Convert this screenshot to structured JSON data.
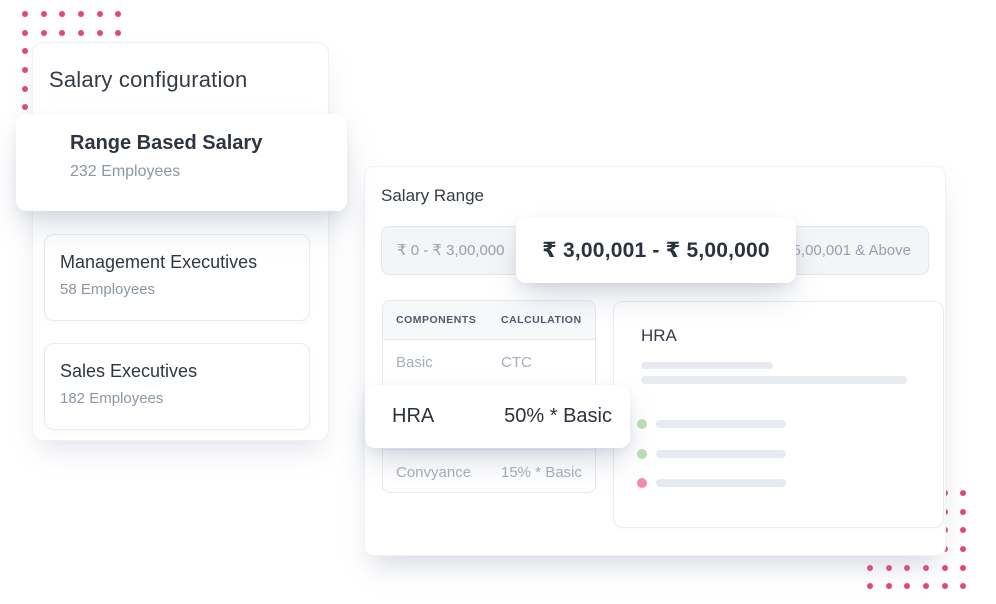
{
  "decor": {
    "dot_color": "#e2477d"
  },
  "sidebar": {
    "title": "Salary configuration",
    "active_group": {
      "title": "Range Based Salary",
      "subtitle": "232 Employees"
    },
    "groups": [
      {
        "title": "Management Executives",
        "subtitle": "58 Employees"
      },
      {
        "title": "Sales Executives",
        "subtitle": "182 Employees"
      }
    ]
  },
  "panel": {
    "title": "Salary Range",
    "tabs": {
      "left": "₹ 0 - ₹ 3,00,000",
      "active": "₹ 3,00,001 - ₹ 5,00,000",
      "right": "₹ 5,00,001 & Above"
    },
    "table": {
      "headers": [
        "COMPONENTS",
        "CALCULATION"
      ],
      "rows": [
        {
          "component": "Basic",
          "calculation": "CTC"
        },
        {
          "component": "Convyance",
          "calculation": "15% * Basic"
        }
      ],
      "active_row": {
        "component": "HRA",
        "calculation": "50% * Basic"
      }
    },
    "detail": {
      "title": "HRA",
      "skeleton": {
        "bullets": [
          {
            "color": "#b9e0b4"
          },
          {
            "color": "#b9e0b4"
          },
          {
            "color": "#f08ca8"
          }
        ]
      }
    }
  }
}
